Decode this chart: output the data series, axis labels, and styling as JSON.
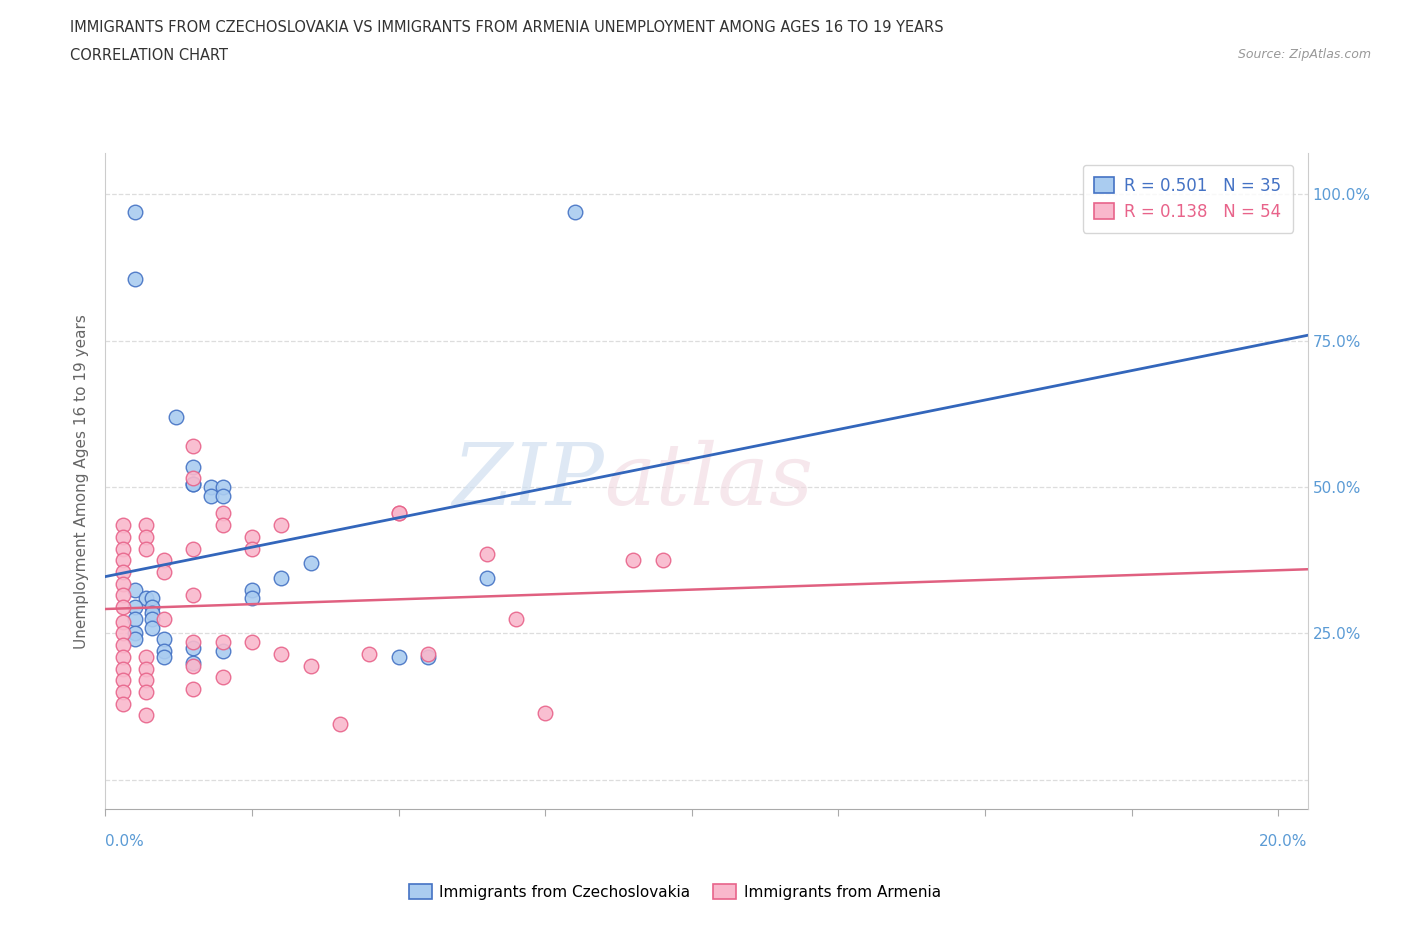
{
  "title_line1": "IMMIGRANTS FROM CZECHOSLOVAKIA VS IMMIGRANTS FROM ARMENIA UNEMPLOYMENT AMONG AGES 16 TO 19 YEARS",
  "title_line2": "CORRELATION CHART",
  "source": "Source: ZipAtlas.com",
  "ylabel": "Unemployment Among Ages 16 to 19 years",
  "ytick_vals": [
    0.0,
    0.25,
    0.5,
    0.75,
    1.0
  ],
  "ytick_labels": [
    "",
    "25.0%",
    "50.0%",
    "75.0%",
    "100.0%"
  ],
  "xlim": [
    0.0,
    0.205
  ],
  "ylim": [
    -0.05,
    1.07
  ],
  "watermark_zip": "ZIP",
  "watermark_atlas": "atlas",
  "legend_r1": "R = 0.501",
  "legend_n1": "N = 35",
  "legend_r2": "R = 0.138",
  "legend_n2": "N = 54",
  "color_czech_face": "#aaccf0",
  "color_czech_edge": "#4472c4",
  "color_armenia_face": "#f9b8cc",
  "color_armenia_edge": "#e8638a",
  "color_czech_line": "#3366bb",
  "color_armenia_line": "#e06080",
  "label_czech": "Immigrants from Czechoslovakia",
  "label_armenia": "Immigrants from Armenia",
  "scatter_czech": [
    [
      0.005,
      0.97
    ],
    [
      0.005,
      0.855
    ],
    [
      0.012,
      0.62
    ],
    [
      0.015,
      0.535
    ],
    [
      0.015,
      0.505
    ],
    [
      0.015,
      0.505
    ],
    [
      0.018,
      0.5
    ],
    [
      0.018,
      0.485
    ],
    [
      0.02,
      0.5
    ],
    [
      0.02,
      0.485
    ],
    [
      0.005,
      0.325
    ],
    [
      0.007,
      0.31
    ],
    [
      0.008,
      0.31
    ],
    [
      0.005,
      0.295
    ],
    [
      0.008,
      0.295
    ],
    [
      0.008,
      0.285
    ],
    [
      0.005,
      0.275
    ],
    [
      0.008,
      0.275
    ],
    [
      0.008,
      0.26
    ],
    [
      0.005,
      0.25
    ],
    [
      0.005,
      0.24
    ],
    [
      0.01,
      0.24
    ],
    [
      0.01,
      0.22
    ],
    [
      0.01,
      0.21
    ],
    [
      0.015,
      0.225
    ],
    [
      0.015,
      0.2
    ],
    [
      0.02,
      0.22
    ],
    [
      0.025,
      0.325
    ],
    [
      0.025,
      0.31
    ],
    [
      0.03,
      0.345
    ],
    [
      0.035,
      0.37
    ],
    [
      0.05,
      0.21
    ],
    [
      0.055,
      0.21
    ],
    [
      0.065,
      0.345
    ],
    [
      0.08,
      0.97
    ]
  ],
  "scatter_armenia": [
    [
      0.003,
      0.435
    ],
    [
      0.003,
      0.415
    ],
    [
      0.003,
      0.395
    ],
    [
      0.003,
      0.375
    ],
    [
      0.003,
      0.355
    ],
    [
      0.003,
      0.335
    ],
    [
      0.003,
      0.315
    ],
    [
      0.003,
      0.295
    ],
    [
      0.003,
      0.27
    ],
    [
      0.003,
      0.25
    ],
    [
      0.003,
      0.23
    ],
    [
      0.003,
      0.21
    ],
    [
      0.003,
      0.19
    ],
    [
      0.003,
      0.17
    ],
    [
      0.003,
      0.15
    ],
    [
      0.003,
      0.13
    ],
    [
      0.007,
      0.435
    ],
    [
      0.007,
      0.415
    ],
    [
      0.007,
      0.395
    ],
    [
      0.01,
      0.375
    ],
    [
      0.01,
      0.355
    ],
    [
      0.01,
      0.275
    ],
    [
      0.007,
      0.21
    ],
    [
      0.007,
      0.19
    ],
    [
      0.007,
      0.17
    ],
    [
      0.007,
      0.15
    ],
    [
      0.007,
      0.11
    ],
    [
      0.015,
      0.57
    ],
    [
      0.015,
      0.515
    ],
    [
      0.015,
      0.395
    ],
    [
      0.015,
      0.315
    ],
    [
      0.015,
      0.235
    ],
    [
      0.015,
      0.195
    ],
    [
      0.015,
      0.155
    ],
    [
      0.02,
      0.455
    ],
    [
      0.02,
      0.435
    ],
    [
      0.02,
      0.235
    ],
    [
      0.02,
      0.175
    ],
    [
      0.025,
      0.415
    ],
    [
      0.025,
      0.395
    ],
    [
      0.025,
      0.235
    ],
    [
      0.03,
      0.435
    ],
    [
      0.03,
      0.215
    ],
    [
      0.035,
      0.195
    ],
    [
      0.04,
      0.095
    ],
    [
      0.045,
      0.215
    ],
    [
      0.05,
      0.455
    ],
    [
      0.05,
      0.455
    ],
    [
      0.055,
      0.215
    ],
    [
      0.065,
      0.385
    ],
    [
      0.07,
      0.275
    ],
    [
      0.075,
      0.115
    ],
    [
      0.09,
      0.375
    ],
    [
      0.095,
      0.375
    ]
  ],
  "background_color": "#ffffff",
  "grid_color": "#dddddd",
  "spine_color": "#cccccc",
  "tick_label_color": "#5b9bd5",
  "ylabel_color": "#666666",
  "title_color": "#333333"
}
